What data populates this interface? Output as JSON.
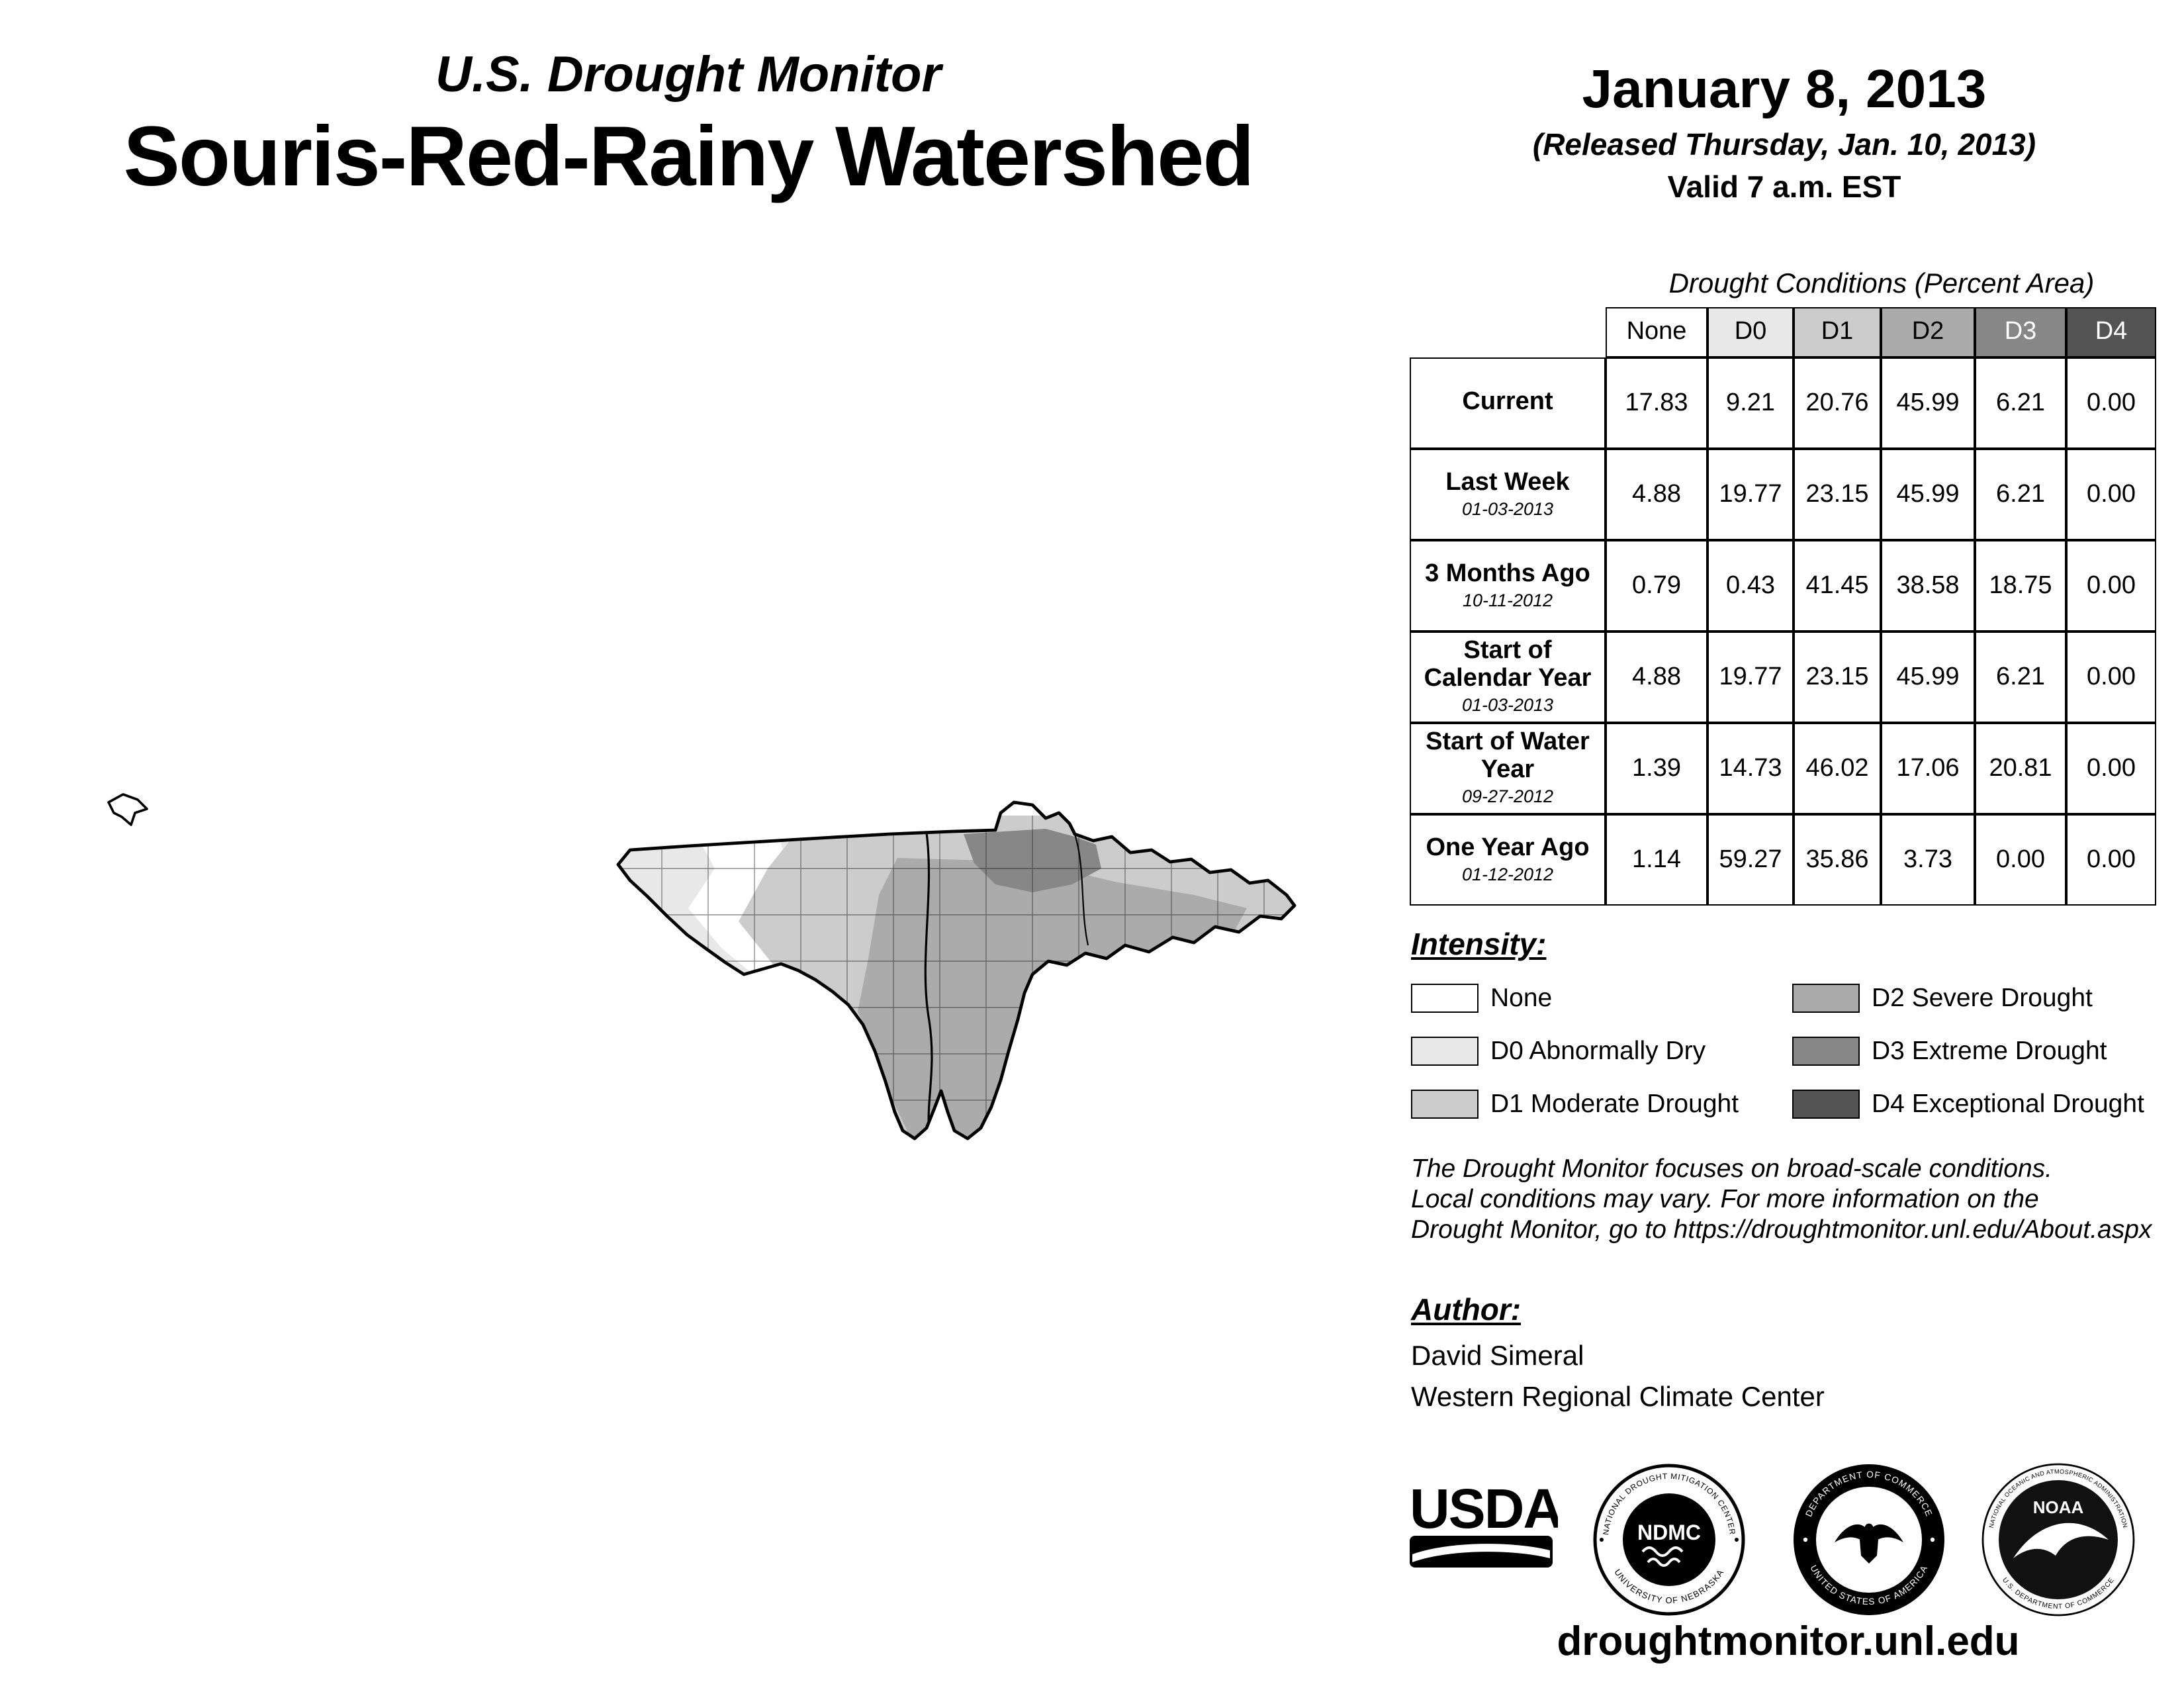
{
  "title": {
    "kicker": "U.S. Drought Monitor",
    "main": "Souris-Red-Rainy Watershed"
  },
  "date": {
    "main": "January 8, 2013",
    "released": "(Released Thursday, Jan. 10, 2013)",
    "valid": "Valid 7 a.m. EST"
  },
  "table": {
    "caption": "Drought Conditions (Percent Area)",
    "columns": [
      {
        "label": "None",
        "bg": "#ffffff",
        "fg": "#000000"
      },
      {
        "label": "D0",
        "bg": "#e8e8e8",
        "fg": "#000000"
      },
      {
        "label": "D1",
        "bg": "#cccccc",
        "fg": "#000000"
      },
      {
        "label": "D2",
        "bg": "#ababab",
        "fg": "#000000"
      },
      {
        "label": "D3",
        "bg": "#878787",
        "fg": "#ffffff"
      },
      {
        "label": "D4",
        "bg": "#545454",
        "fg": "#ffffff"
      }
    ],
    "rows": [
      {
        "label": "Current",
        "date": "",
        "values": [
          "17.83",
          "9.21",
          "20.76",
          "45.99",
          "6.21",
          "0.00"
        ]
      },
      {
        "label": "Last Week",
        "date": "01-03-2013",
        "values": [
          "4.88",
          "19.77",
          "23.15",
          "45.99",
          "6.21",
          "0.00"
        ]
      },
      {
        "label": "3 Months Ago",
        "date": "10-11-2012",
        "values": [
          "0.79",
          "0.43",
          "41.45",
          "38.58",
          "18.75",
          "0.00"
        ]
      },
      {
        "label": "Start of Calendar Year",
        "date": "01-03-2013",
        "values": [
          "4.88",
          "19.77",
          "23.15",
          "45.99",
          "6.21",
          "0.00"
        ]
      },
      {
        "label": "Start of Water Year",
        "date": "09-27-2012",
        "values": [
          "1.39",
          "14.73",
          "46.02",
          "17.06",
          "20.81",
          "0.00"
        ]
      },
      {
        "label": "One Year Ago",
        "date": "01-12-2012",
        "values": [
          "1.14",
          "59.27",
          "35.86",
          "3.73",
          "0.00",
          "0.00"
        ]
      }
    ]
  },
  "intensity": {
    "heading": "Intensity:",
    "items": [
      {
        "code": "none",
        "label": "None",
        "color": "#ffffff"
      },
      {
        "code": "d0",
        "label": "D0 Abnormally Dry",
        "color": "#e8e8e8"
      },
      {
        "code": "d1",
        "label": "D1 Moderate Drought",
        "color": "#cccccc"
      },
      {
        "code": "d2",
        "label": "D2 Severe Drought",
        "color": "#ababab"
      },
      {
        "code": "d3",
        "label": "D3 Extreme Drought",
        "color": "#878787"
      },
      {
        "code": "d4",
        "label": "D4 Exceptional Drought",
        "color": "#545454"
      }
    ]
  },
  "disclaimer": {
    "lines": [
      "The Drought Monitor focuses on broad-scale conditions.",
      "Local conditions may vary. For more information on the",
      "Drought Monitor, go to https://droughtmonitor.unl.edu/About.aspx"
    ]
  },
  "author": {
    "heading": "Author:",
    "name": "David Simeral",
    "org": "Western Regional Climate Center"
  },
  "logos": {
    "usda": {
      "label": "USDA"
    },
    "ndmc": {
      "center": "NDMC",
      "ring_top": "NATIONAL DROUGHT MITIGATION CENTER",
      "ring_bottom": "UNIVERSITY OF NEBRASKA"
    },
    "commerce": {
      "ring_top": "DEPARTMENT OF COMMERCE",
      "ring_bottom": "UNITED STATES OF AMERICA"
    },
    "noaa": {
      "center": "NOAA",
      "ring_top": "NATIONAL OCEANIC AND ATMOSPHERIC ADMINISTRATION",
      "ring_bottom": "U.S. DEPARTMENT OF COMMERCE"
    }
  },
  "footer": {
    "url": "droughtmonitor.unl.edu"
  }
}
